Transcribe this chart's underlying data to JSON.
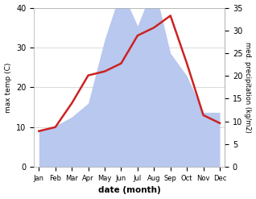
{
  "months": [
    "Jan",
    "Feb",
    "Mar",
    "Apr",
    "May",
    "Jun",
    "Jul",
    "Aug",
    "Sep",
    "Oct",
    "Nov",
    "Dec"
  ],
  "temp": [
    9,
    10,
    16,
    23,
    24,
    26,
    33,
    35,
    38,
    26,
    13,
    11
  ],
  "precip": [
    8,
    9,
    11,
    14,
    28,
    39,
    31,
    40,
    25,
    20,
    12,
    12
  ],
  "temp_color": "#cc2222",
  "precip_color": "#b8c8ee",
  "temp_ylim": [
    0,
    40
  ],
  "precip_ylim": [
    0,
    35
  ],
  "temp_yticks": [
    0,
    10,
    20,
    30,
    40
  ],
  "precip_yticks": [
    0,
    5,
    10,
    15,
    20,
    25,
    30,
    35
  ],
  "ylabel_left": "max temp (C)",
  "ylabel_right": "med. precipitation (kg/m2)",
  "xlabel": "date (month)",
  "bg_color": "#ffffff",
  "line_width": 1.8,
  "precip_scale": 0.875
}
